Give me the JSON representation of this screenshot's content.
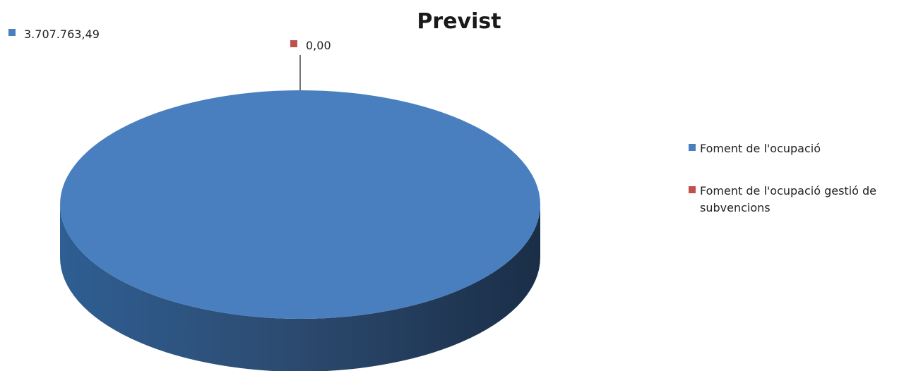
{
  "chart_data": {
    "type": "pie",
    "title": "Previst",
    "series": [
      {
        "name": "Foment de l'ocupació",
        "value": 3707763.49,
        "label": "3.707.763,49",
        "color": "#4A7FBF"
      },
      {
        "name": "Foment de l'ocupació gestió de subvencions",
        "value": 0.0,
        "label": "0,00",
        "color": "#C0504D"
      }
    ],
    "legend": {
      "position": "right",
      "entries": [
        {
          "lines": [
            "Foment de l'ocupació"
          ],
          "color": "#4A7FBF"
        },
        {
          "lines": [
            "Foment de l'ocupació gestió de",
            "subvencions"
          ],
          "color": "#C0504D"
        }
      ]
    }
  }
}
